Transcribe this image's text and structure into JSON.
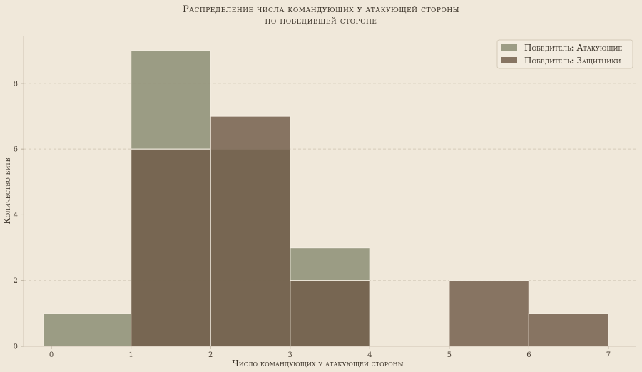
{
  "chart_data": {
    "type": "bar",
    "title_line1": "Распределение числа командующих у атакующей стороны",
    "title_line2": "по победившей стороне",
    "xlabel": "Число командующих у атакующей стороны",
    "ylabel": "Количество битв",
    "xlim": [
      -0.35,
      7.35
    ],
    "ylim": [
      0,
      9.45
    ],
    "x_ticks": [
      0,
      1,
      2,
      3,
      4,
      5,
      6,
      7
    ],
    "y_ticks": [
      0,
      2,
      4,
      6,
      8
    ],
    "grid": "horizontal dashed",
    "legend_position": "top-right",
    "bin_edges": [
      0,
      1,
      2,
      3,
      4,
      5,
      6,
      7
    ],
    "bin_starts_drawn": [
      -0.1,
      1,
      2,
      3,
      4,
      5,
      6
    ],
    "series": [
      {
        "name": "Победитель: Атакующие",
        "color": "#8c8e74",
        "values": [
          1,
          9,
          6,
          3,
          0,
          0,
          0
        ]
      },
      {
        "name": "Победитель: Защитники",
        "color": "#6f5a47",
        "values": [
          0,
          6,
          7,
          2,
          0,
          2,
          1
        ]
      }
    ]
  }
}
